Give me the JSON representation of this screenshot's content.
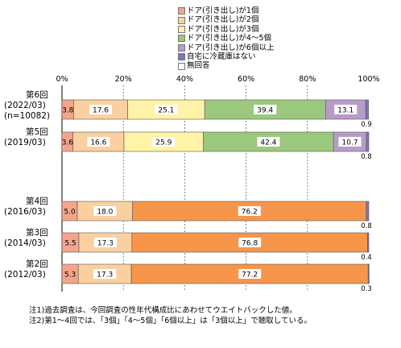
{
  "chart_data": {
    "type": "bar",
    "orientation": "horizontal",
    "stacked": true,
    "xlim": [
      0,
      100
    ],
    "x_ticks": [
      "0%",
      "20%",
      "40%",
      "60%",
      "80%",
      "100%"
    ],
    "legend_position": "top-right",
    "series": [
      {
        "name": "ドア(引き出し)が1個",
        "color": "#f4a58c"
      },
      {
        "name": "ドア(引き出し)が2個",
        "color": "#fbd0a0"
      },
      {
        "name": "ドア(引き出し)が3個",
        "color": "#fff3a8"
      },
      {
        "name": "ドア(引き出し)が4～5個",
        "color": "#9cc87e"
      },
      {
        "name": "ドア(引き出し)が6個以上",
        "color": "#b89cc8"
      },
      {
        "name": "自宅に冷蔵庫はない",
        "color": "#7b79bd"
      },
      {
        "name": "無回答",
        "color": "#ffffff"
      }
    ],
    "rows": [
      {
        "label_lines": [
          "第6回",
          "(2022/03)",
          "(n=10082)"
        ],
        "segments": [
          {
            "value": 3.8,
            "color": "#f4a58c",
            "label": "3.8"
          },
          {
            "value": 17.6,
            "color": "#fbd0a0",
            "label": "17.6"
          },
          {
            "value": 25.1,
            "color": "#fff3a8",
            "label": "25.1"
          },
          {
            "value": 39.4,
            "color": "#9cc87e",
            "label": "39.4"
          },
          {
            "value": 13.1,
            "color": "#b89cc8",
            "label": "13.1"
          },
          {
            "value": 0.9,
            "color": "#7b79bd",
            "label": "0.9",
            "outside": true
          }
        ]
      },
      {
        "label_lines": [
          "第5回",
          "(2019/03)"
        ],
        "segments": [
          {
            "value": 3.6,
            "color": "#f4a58c",
            "label": "3.6"
          },
          {
            "value": 16.6,
            "color": "#fbd0a0",
            "label": "16.6"
          },
          {
            "value": 25.9,
            "color": "#fff3a8",
            "label": "25.9"
          },
          {
            "value": 42.4,
            "color": "#9cc87e",
            "label": "42.4"
          },
          {
            "value": 10.7,
            "color": "#b89cc8",
            "label": "10.7"
          },
          {
            "value": 0.8,
            "color": "#7b79bd",
            "label": "0.8",
            "outside": true
          }
        ]
      },
      {
        "label_lines": [
          "第4回",
          "(2016/03)"
        ],
        "segments": [
          {
            "value": 5.0,
            "color": "#f4a58c",
            "label": "5.0"
          },
          {
            "value": 18.0,
            "color": "#fbd0a0",
            "label": "18.0"
          },
          {
            "value": 76.2,
            "color": "#f7954a",
            "label": "76.2"
          },
          {
            "value": 0.8,
            "color": "#7b79bd",
            "label": "0.8",
            "outside": true
          }
        ]
      },
      {
        "label_lines": [
          "第3回",
          "(2014/03)"
        ],
        "segments": [
          {
            "value": 5.5,
            "color": "#f4a58c",
            "label": "5.5"
          },
          {
            "value": 17.3,
            "color": "#fbd0a0",
            "label": "17.3"
          },
          {
            "value": 76.8,
            "color": "#f7954a",
            "label": "76.8"
          },
          {
            "value": 0.4,
            "color": "#7b79bd",
            "label": "0.4",
            "outside": true
          }
        ]
      },
      {
        "label_lines": [
          "第2回",
          "(2012/03)"
        ],
        "segments": [
          {
            "value": 5.3,
            "color": "#f4a58c",
            "label": "5.3"
          },
          {
            "value": 17.3,
            "color": "#fbd0a0",
            "label": "17.3"
          },
          {
            "value": 77.2,
            "color": "#f7954a",
            "label": "77.2"
          },
          {
            "value": 0.3,
            "color": "#7b79bd",
            "label": "0.3",
            "outside": true
          }
        ]
      }
    ]
  },
  "notes": [
    "注1)過去調査は、今回調査の性年代構成比にあわせてウエイトバックした値。",
    "注2)第1～4回では、「3個」「4～5個」「6個以上」は「3個以上」で聴取している。"
  ]
}
